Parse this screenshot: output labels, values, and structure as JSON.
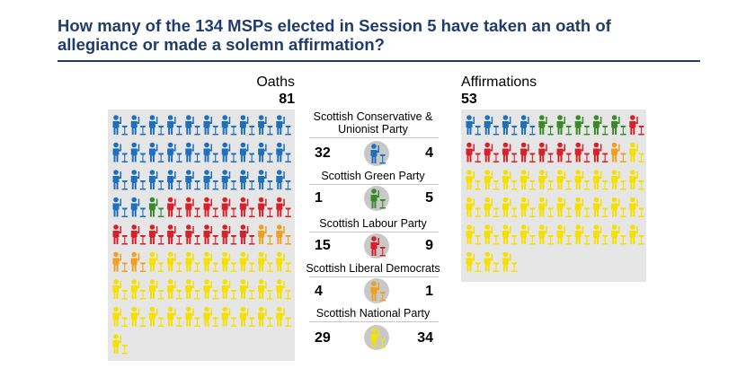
{
  "title": "How many of the 134 MSPs elected in Session 5 have taken an oath of allegiance or made a solemn affirmation?",
  "colors": {
    "panel_bg": "#e6e6e6",
    "title": "#1f3c6e",
    "parties": {
      "conservative": "#1f6fbf",
      "green": "#3a8a2a",
      "labour": "#d6202a",
      "libdem": "#f0a020",
      "snp": "#f5e000"
    }
  },
  "chart_data": {
    "type": "pictogram",
    "title": "How many of the 134 MSPs elected in Session 5 have taken an oath of allegiance or made a solemn affirmation?",
    "total_msps": 134,
    "oaths": {
      "label": "Oaths",
      "total": "81"
    },
    "affirmations": {
      "label": "Affirmations",
      "total": "53"
    },
    "parties": [
      {
        "key": "conservative",
        "name": "Scottish Conservative & Unionist Party",
        "oaths": 32,
        "affirmations": 4
      },
      {
        "key": "green",
        "name": "Scottish Green Party",
        "oaths": 1,
        "affirmations": 5
      },
      {
        "key": "labour",
        "name": "Scottish Labour Party",
        "oaths": 15,
        "affirmations": 9
      },
      {
        "key": "libdem",
        "name": "Scottish Liberal Democrats",
        "oaths": 4,
        "affirmations": 1
      },
      {
        "key": "snp",
        "name": "Scottish National Party",
        "oaths": 29,
        "affirmations": 34
      }
    ]
  }
}
